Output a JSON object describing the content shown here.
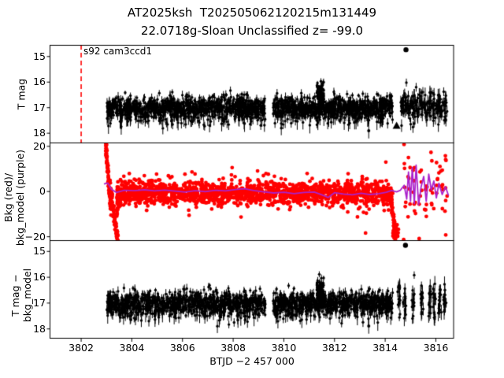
{
  "figure": {
    "title_line1": "AT2025ksh  T202505062120215m131449",
    "title_line2": "22.0718g-Sloan Unclassified z= -99.0",
    "background": "#ffffff"
  },
  "chart_data": {
    "type": "scatter",
    "title": "AT2025ksh  T202505062120215m131449 / 22.0718g-Sloan Unclassified z= -99.0",
    "legend_position": "none",
    "grid": false,
    "x_axis": {
      "label": "BTJD −2 457 000",
      "lim": [
        3800.77,
        3816.7
      ],
      "ticks": [
        3802,
        3804,
        3806,
        3808,
        3810,
        3812,
        3814,
        3816
      ]
    },
    "colors": {
      "points_black": "#000000",
      "points_red": "#ff0000",
      "model_purple": "#aa22cc",
      "marker_line_red": "#ff0000",
      "frame": "#000000"
    },
    "panels": [
      {
        "name": "tess-magnitude",
        "ylabel_lines": [
          "T mag"
        ],
        "ylim": [
          14.56,
          18.38
        ],
        "y_ticks": [
          {
            "v": 15,
            "label": "15"
          },
          {
            "v": 16,
            "label": "16"
          },
          {
            "v": 17,
            "label": "17"
          },
          {
            "v": 18,
            "label": "18"
          }
        ],
        "annotation": {
          "text": "s92 cam3ccd1",
          "x": 3802.05,
          "y": 14.62
        },
        "vline": {
          "x": 3802.0,
          "color": "#ff0000",
          "style": "dashed"
        },
        "series": [
          {
            "name": "T-mag-points",
            "color": "#000000",
            "r": 1.7,
            "segments": [
              {
                "dist": "normal",
                "t0": 3803.02,
                "t1": 3809.27,
                "n": 900,
                "mean": 17.0,
                "sigma": 0.2,
                "err": 0.13
              },
              {
                "dist": "normal",
                "t0": 3803.02,
                "t1": 3809.27,
                "n": 150,
                "mean": 17.35,
                "sigma": 0.2,
                "err": 0.22
              },
              {
                "dist": "normal",
                "t0": 3809.58,
                "t1": 3814.3,
                "n": 720,
                "mean": 17.0,
                "sigma": 0.2,
                "err": 0.13
              },
              {
                "dist": "normal",
                "t0": 3809.58,
                "t1": 3814.3,
                "n": 110,
                "mean": 17.35,
                "sigma": 0.2,
                "err": 0.22
              },
              {
                "dist": "normal",
                "t0": 3811.3,
                "t1": 3811.58,
                "n": 80,
                "mean": 16.5,
                "sigma": 0.25,
                "err": 0.1
              },
              {
                "dist": "columns",
                "centers": [
                  3814.68,
                  3814.82,
                  3814.98,
                  3815.12,
                  3815.28,
                  3815.45,
                  3815.6,
                  3815.76,
                  3815.92,
                  3816.08,
                  3816.22,
                  3816.38
                ],
                "per": 16,
                "spread": 0.045,
                "mean": 16.95,
                "sigma": 0.3,
                "err": 0.2
              }
            ]
          }
        ],
        "outliers": [
          {
            "x": 3814.82,
            "y": 14.75,
            "marker": "circle",
            "r": 3.2
          },
          {
            "x": 3814.45,
            "y": 17.72,
            "marker": "triangle",
            "r": 5
          },
          {
            "x": 3813.35,
            "y": 17.92,
            "marker": "circle",
            "r": 2,
            "err": 0.3
          }
        ]
      },
      {
        "name": "background-vs-model",
        "ylabel_lines": [
          "Bkg (red)/",
          "bkg_model (purple)"
        ],
        "ylim": [
          21.5,
          -21.7
        ],
        "y_ticks": [
          {
            "v": 20,
            "label": "20"
          },
          {
            "v": 0,
            "label": "0"
          },
          {
            "v": -20,
            "label": "−20"
          }
        ],
        "series": [
          {
            "name": "bkg-points",
            "color": "#ff0000",
            "r": 2.4,
            "segments": [
              {
                "dist": "trend",
                "t0": 3802.97,
                "t1": 3803.18,
                "n": 85,
                "v0": 21,
                "v1": -9,
                "jitter": 2
              },
              {
                "dist": "trend",
                "t0": 3803.14,
                "t1": 3803.45,
                "n": 85,
                "v0": 1,
                "v1": -21,
                "jitter": 2
              },
              {
                "dist": "trend",
                "t0": 3803.4,
                "t1": 3803.65,
                "n": 30,
                "v0": -10,
                "v1": -1,
                "jitter": 1.5
              },
              {
                "dist": "normal",
                "t0": 3803.4,
                "t1": 3814.3,
                "n": 1600,
                "mean": -0.8,
                "sigma": 2.6
              },
              {
                "dist": "normal",
                "t0": 3803.4,
                "t1": 3814.3,
                "n": 70,
                "mean": 0.5,
                "sigma": 6.5
              },
              {
                "dist": "trend",
                "t0": 3814.18,
                "t1": 3814.45,
                "n": 60,
                "v0": -2,
                "v1": -20,
                "jitter": 1.8
              },
              {
                "dist": "uniform",
                "t0": 3814.3,
                "t1": 3814.55,
                "n": 20,
                "vmin": -21,
                "vmax": -14
              },
              {
                "dist": "columns",
                "centers": [
                  3814.75,
                  3814.95,
                  3815.15,
                  3815.38,
                  3815.6,
                  3815.85,
                  3816.05,
                  3816.25,
                  3816.42
                ],
                "per": 8,
                "spread": 0.04,
                "mean": -1,
                "sigma": 11
              }
            ]
          },
          {
            "name": "bkg-model-line",
            "type": "line",
            "color": "#aa22cc",
            "lw": 1.8,
            "points": [
              [
                3802.9,
                3.2
              ],
              [
                3803.05,
                3.6
              ],
              [
                3803.2,
                0.8
              ],
              [
                3803.4,
                -0.6
              ],
              [
                3803.7,
                0.4
              ],
              [
                3804.1,
                0.2
              ],
              [
                3804.5,
                0.6
              ],
              [
                3804.9,
                0.1
              ],
              [
                3805.3,
                0.5
              ],
              [
                3805.7,
                0.0
              ],
              [
                3806.1,
                -0.4
              ],
              [
                3806.5,
                0.2
              ],
              [
                3806.9,
                -0.2
              ],
              [
                3807.3,
                0.4
              ],
              [
                3807.7,
                0.1
              ],
              [
                3808.1,
                0.7
              ],
              [
                3808.45,
                1.1
              ],
              [
                3808.8,
                0.3
              ],
              [
                3809.2,
                -0.3
              ],
              [
                3809.6,
                -0.8
              ],
              [
                3810.0,
                -0.5
              ],
              [
                3810.4,
                -1.1
              ],
              [
                3810.8,
                -0.6
              ],
              [
                3811.2,
                -0.4
              ],
              [
                3811.5,
                -1.6
              ],
              [
                3811.75,
                -2.8
              ],
              [
                3812.0,
                -0.7
              ],
              [
                3812.35,
                -1.3
              ],
              [
                3812.7,
                -1.6
              ],
              [
                3813.05,
                -0.9
              ],
              [
                3813.4,
                -1.5
              ],
              [
                3813.75,
                -1.1
              ],
              [
                3814.05,
                -0.5
              ],
              [
                3814.25,
                0.3
              ],
              [
                3814.45,
                -0.3
              ],
              [
                3814.6,
                0.4
              ],
              [
                3814.75,
                2.6
              ],
              [
                3814.85,
                -3.5
              ],
              [
                3814.92,
                8.5
              ],
              [
                3815.0,
                -4.5
              ],
              [
                3815.07,
                10.5
              ],
              [
                3815.15,
                -5.5
              ],
              [
                3815.22,
                11.5
              ],
              [
                3815.32,
                -6.0
              ],
              [
                3815.42,
                2.0
              ],
              [
                3815.52,
                6.5
              ],
              [
                3815.62,
                -4.5
              ],
              [
                3815.72,
                7.5
              ],
              [
                3815.82,
                0.5
              ],
              [
                3815.92,
                4.5
              ],
              [
                3816.02,
                -3.0
              ],
              [
                3816.12,
                3.5
              ],
              [
                3816.25,
                -1.5
              ],
              [
                3816.38,
                2.0
              ],
              [
                3816.5,
                -2.0
              ]
            ]
          }
        ],
        "outliers": []
      },
      {
        "name": "mag-minus-model",
        "ylabel_lines": [
          "T mag −",
          "bkg_model"
        ],
        "ylim": [
          14.58,
          18.36
        ],
        "y_ticks": [
          {
            "v": 15,
            "label": "15"
          },
          {
            "v": 16,
            "label": "16"
          },
          {
            "v": 17,
            "label": "17"
          },
          {
            "v": 18,
            "label": "18"
          }
        ],
        "series": [
          {
            "name": "corrected-mag-points",
            "color": "#000000",
            "r": 1.7,
            "segments": [
              {
                "dist": "normal",
                "t0": 3803.02,
                "t1": 3809.27,
                "n": 900,
                "mean": 17.0,
                "sigma": 0.2,
                "err": 0.13
              },
              {
                "dist": "normal",
                "t0": 3803.02,
                "t1": 3809.27,
                "n": 150,
                "mean": 17.35,
                "sigma": 0.2,
                "err": 0.22
              },
              {
                "dist": "normal",
                "t0": 3809.58,
                "t1": 3814.3,
                "n": 720,
                "mean": 17.0,
                "sigma": 0.2,
                "err": 0.13
              },
              {
                "dist": "normal",
                "t0": 3809.58,
                "t1": 3814.3,
                "n": 110,
                "mean": 17.35,
                "sigma": 0.2,
                "err": 0.22
              },
              {
                "dist": "normal",
                "t0": 3811.3,
                "t1": 3811.58,
                "n": 80,
                "mean": 16.5,
                "sigma": 0.25,
                "err": 0.1
              },
              {
                "dist": "columns",
                "centers": [
                  3814.55,
                  3814.77,
                  3815.1,
                  3815.45,
                  3815.75,
                  3815.95,
                  3816.15,
                  3816.35
                ],
                "per": 15,
                "spread": 0.03,
                "mean": 16.95,
                "sigma": 0.33,
                "err": 0.22
              }
            ]
          }
        ],
        "outliers": [
          {
            "x": 3814.8,
            "y": 14.78,
            "marker": "circle",
            "r": 3.2
          },
          {
            "x": 3813.35,
            "y": 17.9,
            "marker": "circle",
            "r": 2,
            "err": 0.3
          }
        ]
      }
    ]
  }
}
